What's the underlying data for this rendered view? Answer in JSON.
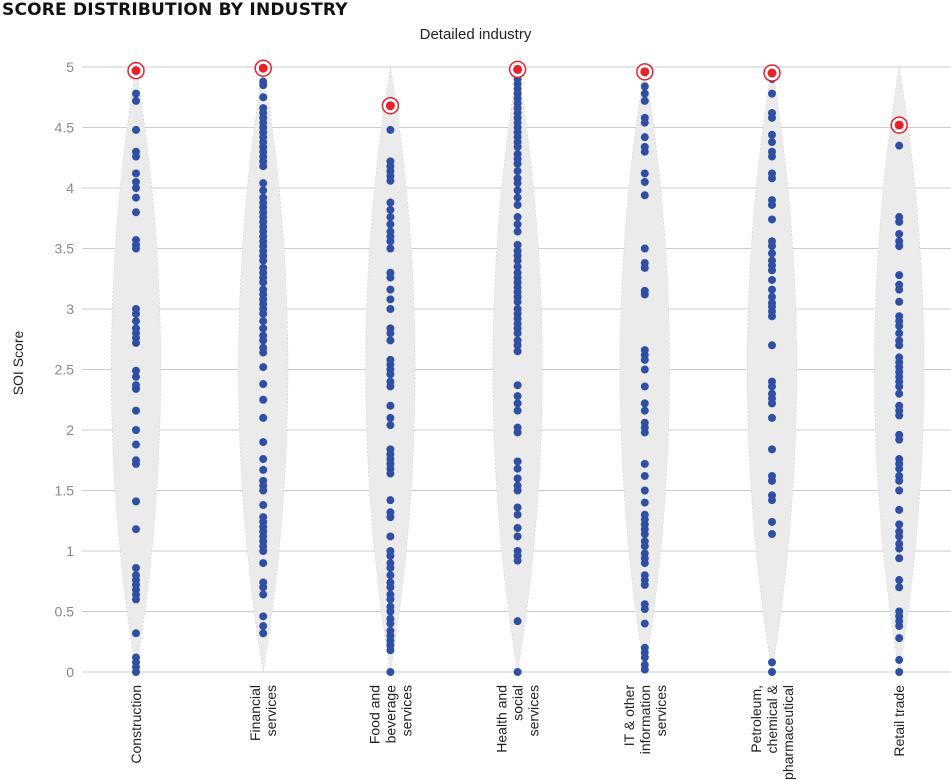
{
  "title": "SCORE DISTRIBUTION BY INDUSTRY",
  "colors": {
    "dot": "#2E4FA3",
    "highlight": "#E8202A",
    "violin": "#EBEBEB",
    "grid": "#CCCCCC",
    "tick_text": "#888888"
  },
  "chart_data": {
    "type": "scatter",
    "subtype": "violin-strip",
    "title": "SCORE DISTRIBUTION BY INDUSTRY",
    "xlabel": "Detailed industry",
    "ylabel": "SOI Score",
    "ylim": [
      0,
      5
    ],
    "yticks": [
      0,
      0.5,
      1,
      1.5,
      2,
      2.5,
      3,
      3.5,
      4,
      4.5,
      5
    ],
    "ytick_labels": [
      "0",
      "0.5",
      "1",
      "1.5",
      "2",
      "2.5",
      "3",
      "3.5",
      "4",
      "4.5",
      "5"
    ],
    "grid": true,
    "legend": null,
    "categories": [
      "Construction",
      "Financial services",
      "Food and beverage services",
      "Health and social services",
      "IT & other information services",
      "Petroleum, chemical & pharmaceutical",
      "Retail trade"
    ],
    "category_label_lines": [
      [
        "Construction"
      ],
      [
        "Financial",
        "services"
      ],
      [
        "Food and",
        "beverage",
        "services"
      ],
      [
        "Health and",
        "social",
        "services"
      ],
      [
        "IT & other",
        "information",
        "services"
      ],
      [
        "Petroleum,",
        "chemical &",
        "pharmaceutical"
      ],
      [
        "Retail trade"
      ]
    ],
    "highlighted_max": [
      4.97,
      4.99,
      4.68,
      4.98,
      4.96,
      4.95,
      4.52
    ],
    "series": [
      {
        "name": "Construction",
        "values": [
          4.78,
          4.72,
          4.48,
          4.3,
          4.26,
          4.12,
          4.05,
          4.0,
          3.92,
          3.8,
          3.57,
          3.53,
          3.5,
          3.0,
          2.96,
          2.9,
          2.84,
          2.8,
          2.76,
          2.72,
          2.49,
          2.44,
          2.37,
          2.34,
          2.16,
          2.0,
          1.88,
          1.75,
          1.72,
          1.41,
          1.18,
          0.86,
          0.8,
          0.76,
          0.72,
          0.68,
          0.64,
          0.6,
          0.32,
          0.12,
          0.08,
          0.04,
          0.0
        ]
      },
      {
        "name": "Financial services",
        "values": [
          4.88,
          4.85,
          4.75,
          4.66,
          4.62,
          4.58,
          4.54,
          4.5,
          4.46,
          4.42,
          4.38,
          4.34,
          4.3,
          4.26,
          4.22,
          4.18,
          4.04,
          3.98,
          3.92,
          3.88,
          3.84,
          3.8,
          3.76,
          3.72,
          3.68,
          3.64,
          3.6,
          3.56,
          3.52,
          3.48,
          3.44,
          3.4,
          3.34,
          3.3,
          3.26,
          3.22,
          3.16,
          3.12,
          3.08,
          3.04,
          3.0,
          2.96,
          2.9,
          2.84,
          2.78,
          2.74,
          2.68,
          2.64,
          2.52,
          2.38,
          2.25,
          2.1,
          1.9,
          1.76,
          1.67,
          1.58,
          1.54,
          1.5,
          1.38,
          1.28,
          1.24,
          1.2,
          1.16,
          1.12,
          1.08,
          1.04,
          1.0,
          0.9,
          0.74,
          0.7,
          0.64,
          0.46,
          0.38,
          0.32
        ]
      },
      {
        "name": "Food and beverage services",
        "values": [
          4.64,
          4.48,
          4.22,
          4.18,
          4.14,
          4.1,
          4.06,
          3.88,
          3.82,
          3.76,
          3.7,
          3.64,
          3.6,
          3.56,
          3.5,
          3.3,
          3.26,
          3.16,
          3.08,
          3.0,
          2.84,
          2.8,
          2.74,
          2.58,
          2.54,
          2.5,
          2.46,
          2.4,
          2.36,
          2.2,
          2.1,
          2.04,
          1.84,
          1.8,
          1.76,
          1.72,
          1.68,
          1.64,
          1.42,
          1.32,
          1.28,
          1.12,
          1.0,
          0.96,
          0.9,
          0.86,
          0.8,
          0.74,
          0.7,
          0.64,
          0.6,
          0.54,
          0.5,
          0.44,
          0.4,
          0.34,
          0.3,
          0.26,
          0.22,
          0.18,
          0.0
        ]
      },
      {
        "name": "Health and social services",
        "values": [
          4.9,
          4.86,
          4.82,
          4.78,
          4.74,
          4.7,
          4.66,
          4.62,
          4.58,
          4.54,
          4.5,
          4.46,
          4.42,
          4.38,
          4.34,
          4.28,
          4.24,
          4.2,
          4.14,
          4.08,
          4.04,
          3.98,
          3.92,
          3.86,
          3.76,
          3.7,
          3.64,
          3.53,
          3.48,
          3.44,
          3.4,
          3.35,
          3.3,
          3.26,
          3.22,
          3.18,
          3.14,
          3.1,
          3.06,
          3.0,
          2.96,
          2.92,
          2.88,
          2.84,
          2.8,
          2.74,
          2.7,
          2.65,
          2.37,
          2.28,
          2.22,
          2.16,
          2.02,
          1.98,
          1.74,
          1.68,
          1.6,
          1.54,
          1.5,
          1.36,
          1.3,
          1.19,
          1.12,
          1.0,
          0.96,
          0.92,
          0.42,
          0.0
        ]
      },
      {
        "name": "IT & other information services",
        "values": [
          4.84,
          4.78,
          4.72,
          4.58,
          4.54,
          4.42,
          4.34,
          4.3,
          4.12,
          4.05,
          3.94,
          3.5,
          3.38,
          3.34,
          3.15,
          3.12,
          2.66,
          2.62,
          2.58,
          2.5,
          2.36,
          2.22,
          2.16,
          2.06,
          2.02,
          1.98,
          1.72,
          1.62,
          1.5,
          1.4,
          1.3,
          1.26,
          1.22,
          1.18,
          1.14,
          1.08,
          1.04,
          0.98,
          0.94,
          0.9,
          0.8,
          0.76,
          0.72,
          0.56,
          0.52,
          0.4,
          0.2,
          0.16,
          0.12,
          0.06,
          0.02
        ]
      },
      {
        "name": "Petroleum, chemical & pharmaceutical",
        "values": [
          4.9,
          4.78,
          4.62,
          4.58,
          4.44,
          4.38,
          4.3,
          4.26,
          4.12,
          4.08,
          3.9,
          3.86,
          3.74,
          3.56,
          3.52,
          3.46,
          3.4,
          3.36,
          3.32,
          3.24,
          3.16,
          3.1,
          3.05,
          3.02,
          2.98,
          2.94,
          2.7,
          2.4,
          2.36,
          2.3,
          2.26,
          2.22,
          2.1,
          1.84,
          1.62,
          1.58,
          1.46,
          1.42,
          1.24,
          1.14,
          0.08,
          0.0
        ]
      },
      {
        "name": "Retail trade",
        "values": [
          4.35,
          3.76,
          3.72,
          3.62,
          3.56,
          3.52,
          3.28,
          3.2,
          3.16,
          3.06,
          2.94,
          2.9,
          2.86,
          2.8,
          2.74,
          2.7,
          2.6,
          2.56,
          2.52,
          2.48,
          2.44,
          2.4,
          2.36,
          2.3,
          2.2,
          2.16,
          2.12,
          1.96,
          1.92,
          1.76,
          1.72,
          1.68,
          1.62,
          1.58,
          1.5,
          1.34,
          1.22,
          1.16,
          1.12,
          1.06,
          1.02,
          0.94,
          0.76,
          0.7,
          0.5,
          0.46,
          0.42,
          0.38,
          0.28,
          0.1,
          0.0
        ]
      }
    ]
  }
}
